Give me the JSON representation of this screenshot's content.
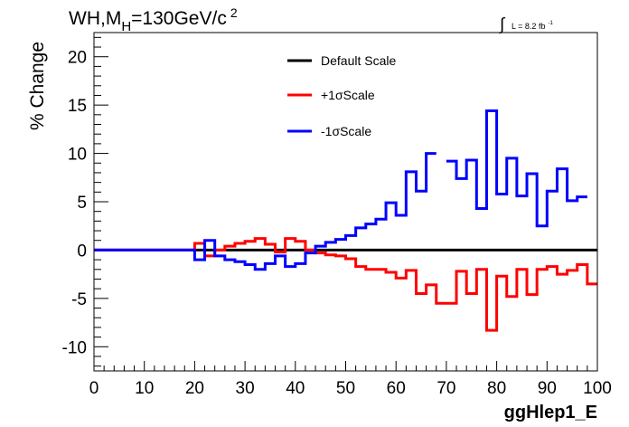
{
  "header": {
    "title_main": "WH,M",
    "title_sub": "H",
    "title_rest": "=130GeV/c",
    "title_sup": "2",
    "lumi_text": "L = 8.2 fb",
    "lumi_sup": "-1",
    "integral_symbol": "∫"
  },
  "chart_data": {
    "type": "line",
    "title": "WH,MH=130GeV/c2",
    "xlabel": "ggHlep1_E",
    "ylabel": "% Change",
    "xlim": [
      0,
      100
    ],
    "ylim": [
      -12.5,
      22.5
    ],
    "xticks": [
      "0",
      "10",
      "20",
      "30",
      "40",
      "50",
      "60",
      "70",
      "80",
      "90",
      "100"
    ],
    "yticks": [
      "-10",
      "-5",
      "0",
      "5",
      "10",
      "15",
      "20"
    ],
    "grid": false,
    "legend_position": "top-center",
    "bin_edges": [
      0,
      2,
      4,
      6,
      8,
      10,
      12,
      14,
      16,
      18,
      20,
      22,
      24,
      26,
      28,
      30,
      32,
      34,
      36,
      38,
      40,
      42,
      44,
      46,
      48,
      50,
      52,
      54,
      56,
      58,
      60,
      62,
      64,
      66,
      68,
      70,
      72,
      74,
      76,
      78,
      80,
      82,
      84,
      86,
      88,
      90,
      92,
      94,
      96,
      98,
      100
    ],
    "series": [
      {
        "name": "Default Scale",
        "color": "#000000",
        "values": [
          0,
          0,
          0,
          0,
          0,
          0,
          0,
          0,
          0,
          0,
          0,
          0,
          0,
          0,
          0,
          0,
          0,
          0,
          0,
          0,
          0,
          0,
          0,
          0,
          0,
          0,
          0,
          0,
          0,
          0,
          0,
          0,
          0,
          0,
          0,
          0,
          0,
          0,
          0,
          0,
          0,
          0,
          0,
          0,
          0,
          0,
          0,
          0,
          0,
          0
        ]
      },
      {
        "name": "+1σScale",
        "color": "#ff0000",
        "values": [
          0,
          0,
          0,
          0,
          0,
          0,
          0,
          0,
          0,
          0,
          0.7,
          -0.6,
          0,
          0.4,
          0.7,
          0.9,
          1.2,
          0.6,
          -0.2,
          1.2,
          0.9,
          0,
          -0.3,
          -0.5,
          -0.6,
          -0.9,
          -1.7,
          -2.0,
          -2.0,
          -2.3,
          -2.9,
          -2.1,
          -4.5,
          -3.6,
          -5.5,
          -5.5,
          -2.2,
          -4.5,
          -2.0,
          -8.3,
          -2.7,
          -4.8,
          -2.0,
          -4.6,
          -2.0,
          -1.7,
          -2.5,
          -2.1,
          -1.5,
          -3.5
        ]
      },
      {
        "name": "-1σScale",
        "color": "#0000ff",
        "values": [
          0,
          0,
          0,
          0,
          0,
          0,
          0,
          0,
          0,
          0,
          -1.0,
          1.0,
          -0.6,
          -1.0,
          -1.2,
          -1.5,
          -2.0,
          -1.4,
          -0.6,
          -1.7,
          -1.4,
          -0.3,
          0.4,
          0.8,
          1.1,
          1.5,
          2.3,
          2.7,
          3.2,
          4.9,
          3.6,
          8.1,
          6.1,
          10.0,
          null,
          9.2,
          7.4,
          9.3,
          4.3,
          14.4,
          5.8,
          9.5,
          5.6,
          7.9,
          2.5,
          6.1,
          8.4,
          5.1,
          5.5,
          null
        ]
      }
    ]
  }
}
